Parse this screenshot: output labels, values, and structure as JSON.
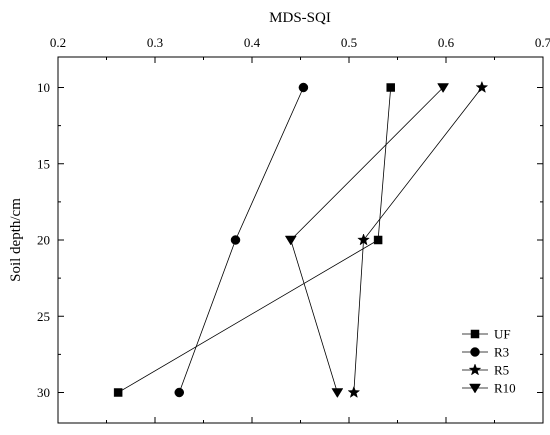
{
  "chart_data": {
    "type": "line",
    "orientation": "profile",
    "title": "",
    "xlabel": "MDS-SQI",
    "ylabel": "Soil depth/cm",
    "x_axis_position": "top",
    "y_axis_inverted": true,
    "xlim": [
      0.2,
      0.7
    ],
    "ylim": [
      8,
      32
    ],
    "xticks": [
      "0.2",
      "0.3",
      "0.4",
      "0.5",
      "0.6",
      "0.7"
    ],
    "yticks": [
      "10",
      "15",
      "20",
      "25",
      "30"
    ],
    "grid": false,
    "legend_position": "bottom-right",
    "depths": [
      10,
      20,
      30
    ],
    "series": [
      {
        "name": "UF",
        "marker": "square",
        "values": [
          0.543,
          0.53,
          0.262
        ]
      },
      {
        "name": "R3",
        "marker": "circle",
        "values": [
          0.453,
          0.383,
          0.325
        ]
      },
      {
        "name": "R5",
        "marker": "star",
        "values": [
          0.637,
          0.515,
          0.505
        ]
      },
      {
        "name": "R10",
        "marker": "triangle-down",
        "values": [
          0.597,
          0.44,
          0.488
        ]
      }
    ]
  }
}
